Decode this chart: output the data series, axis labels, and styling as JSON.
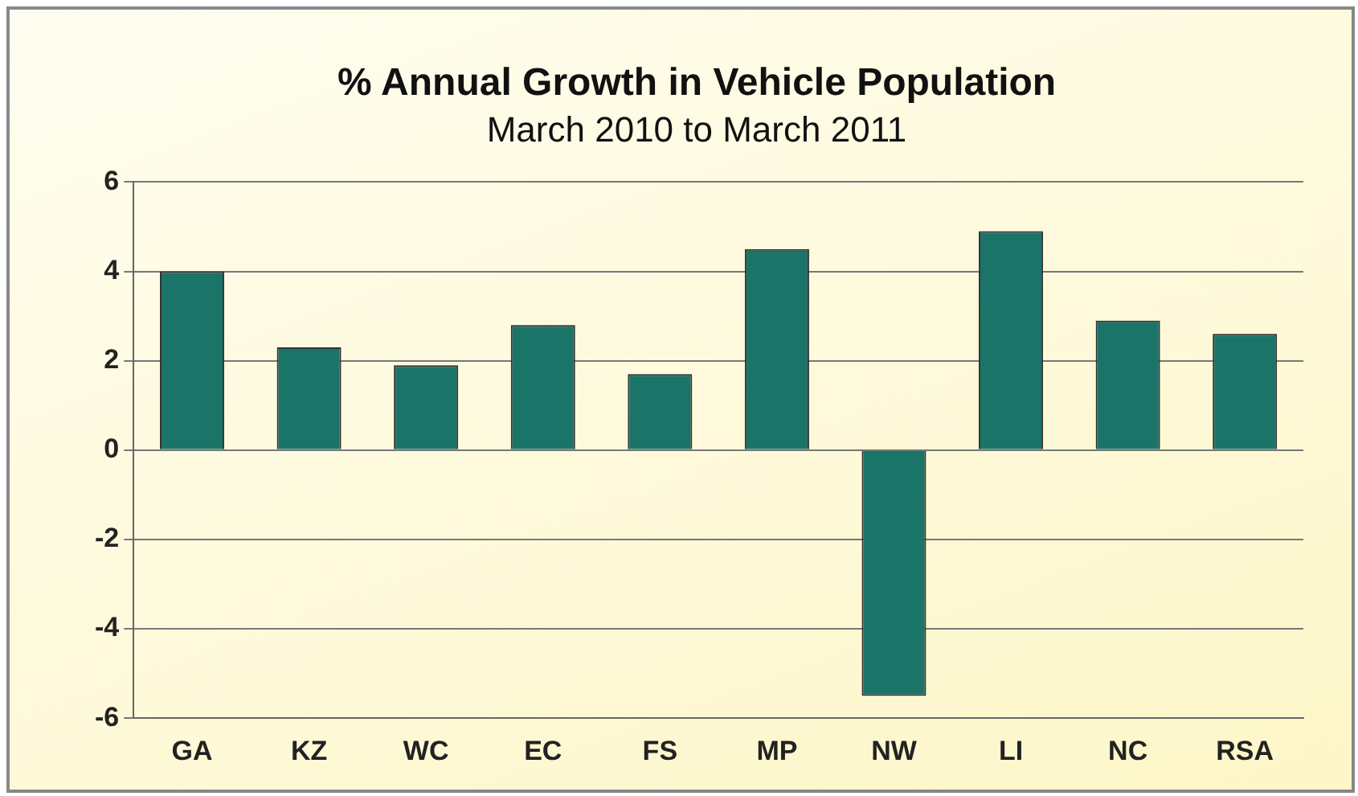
{
  "chart_data": {
    "type": "bar",
    "title": "% Annual Growth in Vehicle Population",
    "subtitle": "March 2010 to March 2011",
    "categories": [
      "GA",
      "KZ",
      "WC",
      "EC",
      "FS",
      "MP",
      "NW",
      "LI",
      "NC",
      "RSA"
    ],
    "values": [
      4.0,
      2.3,
      1.9,
      2.8,
      1.7,
      4.5,
      -5.5,
      4.9,
      2.9,
      2.6
    ],
    "color": "#1b7468",
    "ylim": [
      -6,
      6
    ],
    "yticks": [
      -6,
      -4,
      -2,
      0,
      2,
      4,
      6
    ],
    "grid": "y"
  }
}
